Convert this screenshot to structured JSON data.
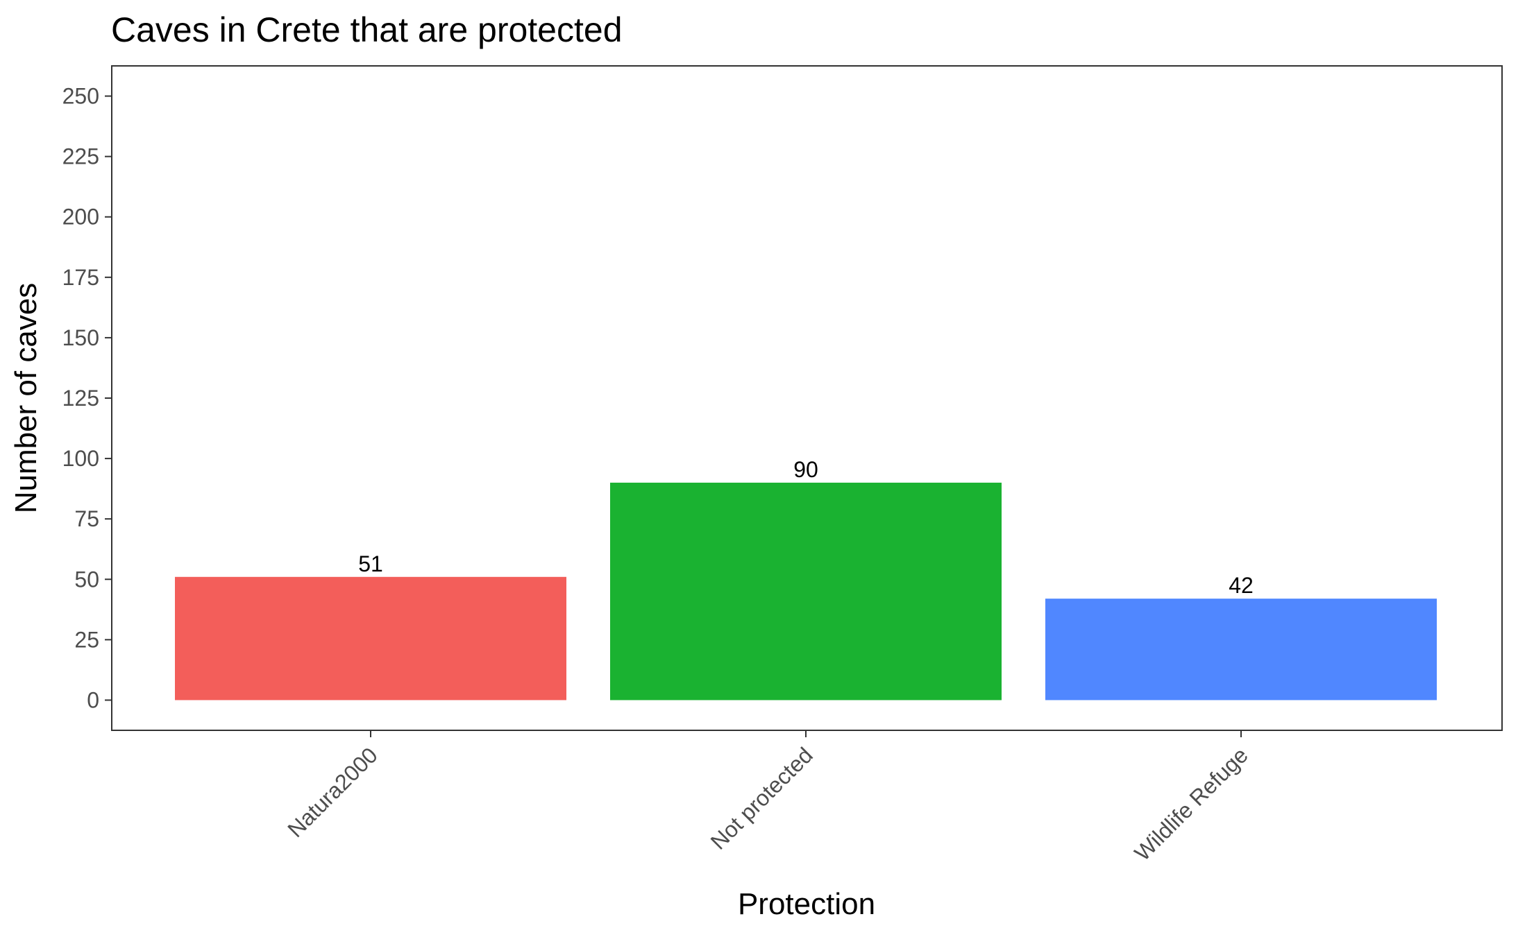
{
  "chart_data": {
    "type": "bar",
    "title": "Caves in Crete that are protected",
    "xlabel": "Protection",
    "ylabel": "Number of caves",
    "categories": [
      "Natura2000",
      "Not protected",
      "Wildlife Refuge"
    ],
    "values": [
      51,
      90,
      42
    ],
    "value_labels": [
      "51",
      "90",
      "42"
    ],
    "colors": [
      "#F35E5A",
      "#1AB231",
      "#5087FF"
    ],
    "yticks": [
      0,
      25,
      50,
      75,
      100,
      125,
      150,
      175,
      200,
      225,
      250
    ],
    "ytick_labels": [
      "0",
      "25",
      "50",
      "75",
      "100",
      "125",
      "150",
      "175",
      "200",
      "225",
      "250"
    ],
    "ylim": [
      -12.5,
      262.5
    ],
    "grid": false,
    "legend": "none"
  }
}
